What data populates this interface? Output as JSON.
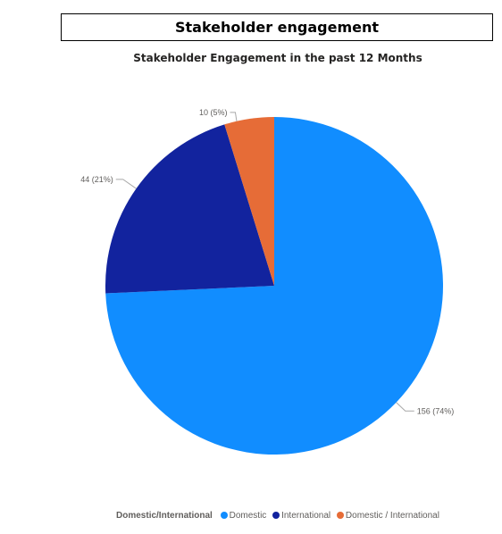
{
  "header": {
    "title": "Stakeholder engagement"
  },
  "chart_data": {
    "type": "pie",
    "title": "Stakeholder Engagement in the past 12 Months",
    "legend_title": "Domestic/International",
    "legend_position": "bottom",
    "slices": [
      {
        "name": "Domestic",
        "value": 156,
        "label": "156 (74%)",
        "color": "#118DFF"
      },
      {
        "name": "International",
        "value": 44,
        "label": "44 (21%)",
        "color": "#12239E"
      },
      {
        "name": "Domestic / International",
        "value": 10,
        "label": "10 (5%)",
        "color": "#E66C37"
      }
    ]
  }
}
